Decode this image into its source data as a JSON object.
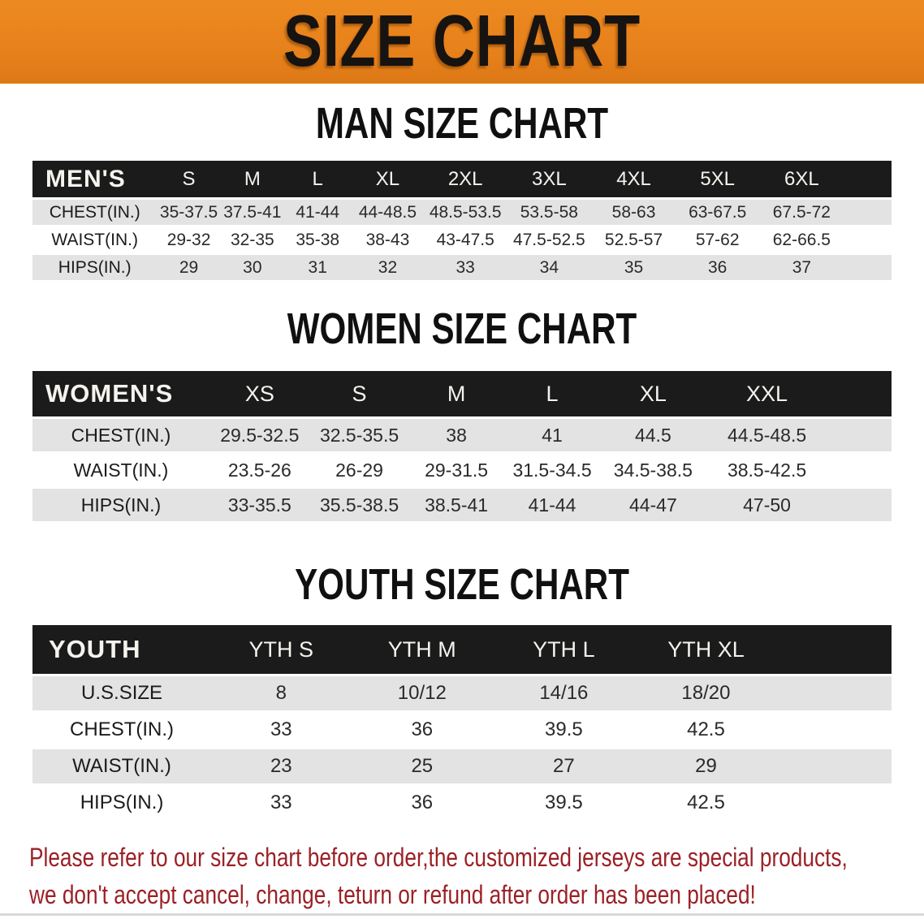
{
  "banner": {
    "title": "SIZE CHART"
  },
  "colors": {
    "banner_bg": "#E8821C",
    "table_header_bg": "#1B1B1B",
    "row_alt_gray": "#E3E3E3",
    "disclaimer_red": "#9B2126"
  },
  "sections": [
    {
      "heading": "MAN SIZE CHART",
      "table": {
        "label_header": "MEN'S",
        "size_headers": [
          "S",
          "M",
          "L",
          "XL",
          "2XL",
          "3XL",
          "4XL",
          "5XL",
          "6XL"
        ],
        "rows": [
          {
            "label": "CHEST(IN.)",
            "values": [
              "35-37.5",
              "37.5-41",
              "41-44",
              "44-48.5",
              "48.5-53.5",
              "53.5-58",
              "58-63",
              "63-67.5",
              "67.5-72"
            ]
          },
          {
            "label": "WAIST(IN.)",
            "values": [
              "29-32",
              "32-35",
              "35-38",
              "38-43",
              "43-47.5",
              "47.5-52.5",
              "52.5-57",
              "57-62",
              "62-66.5"
            ]
          },
          {
            "label": "HIPS(IN.)",
            "values": [
              "29",
              "30",
              "31",
              "32",
              "33",
              "34",
              "35",
              "36",
              "37"
            ]
          }
        ]
      }
    },
    {
      "heading": "WOMEN SIZE CHART",
      "table": {
        "label_header": "WOMEN'S",
        "size_headers": [
          "XS",
          "S",
          "M",
          "L",
          "XL",
          "XXL"
        ],
        "rows": [
          {
            "label": "CHEST(IN.)",
            "values": [
              "29.5-32.5",
              "32.5-35.5",
              "38",
              "41",
              "44.5",
              "44.5-48.5"
            ]
          },
          {
            "label": "WAIST(IN.)",
            "values": [
              "23.5-26",
              "26-29",
              "29-31.5",
              "31.5-34.5",
              "34.5-38.5",
              "38.5-42.5"
            ]
          },
          {
            "label": "HIPS(IN.)",
            "values": [
              "33-35.5",
              "35.5-38.5",
              "38.5-41",
              "41-44",
              "44-47",
              "47-50"
            ]
          }
        ]
      }
    },
    {
      "heading": "YOUTH SIZE CHART",
      "table": {
        "label_header": "YOUTH",
        "size_headers": [
          "YTH S",
          "YTH M",
          "YTH L",
          "YTH XL"
        ],
        "rows": [
          {
            "label": "U.S.SIZE",
            "values": [
              "8",
              "10/12",
              "14/16",
              "18/20"
            ]
          },
          {
            "label": "CHEST(IN.)",
            "values": [
              "33",
              "36",
              "39.5",
              "42.5"
            ]
          },
          {
            "label": "WAIST(IN.)",
            "values": [
              "23",
              "25",
              "27",
              "29"
            ]
          },
          {
            "label": "HIPS(IN.)",
            "values": [
              "33",
              "36",
              "39.5",
              "42.5"
            ]
          }
        ]
      }
    }
  ],
  "disclaimer": {
    "line1": "Please refer to our size chart before order,the customized jerseys are special products,",
    "line2": "we don't accept cancel, change, teturn or refund after order has been placed!"
  }
}
